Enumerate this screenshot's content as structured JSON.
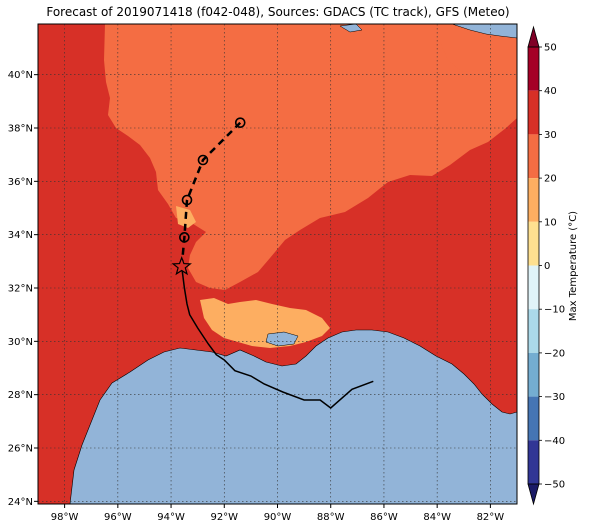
{
  "title": "Forecast of 2019071418 (f042-048), Sources: GDACS (TC track), GFS (Meteo)",
  "map": {
    "lon_range": [
      -99,
      -81
    ],
    "lat_range": [
      23.9,
      41.9
    ],
    "lon_ticks": [
      {
        "value": -98,
        "label": "98°W"
      },
      {
        "value": -96,
        "label": "96°W"
      },
      {
        "value": -94,
        "label": "94°W"
      },
      {
        "value": -92,
        "label": "92°W"
      },
      {
        "value": -90,
        "label": "90°W"
      },
      {
        "value": -88,
        "label": "88°W"
      },
      {
        "value": -86,
        "label": "86°W"
      },
      {
        "value": -84,
        "label": "84°W"
      },
      {
        "value": -82,
        "label": "82°W"
      }
    ],
    "lat_ticks": [
      {
        "value": 24,
        "label": "24°N"
      },
      {
        "value": 26,
        "label": "26°N"
      },
      {
        "value": 28,
        "label": "28°N"
      },
      {
        "value": 30,
        "label": "30°N"
      },
      {
        "value": 32,
        "label": "32°N"
      },
      {
        "value": 34,
        "label": "34°N"
      },
      {
        "value": 36,
        "label": "36°N"
      },
      {
        "value": 38,
        "label": "38°N"
      },
      {
        "value": 40,
        "label": "40°N"
      }
    ],
    "grid": true,
    "colors": {
      "water": "#92b4d8",
      "band_30_40": "#d73027",
      "band_20_30": "#f46d43",
      "band_10_20": "#fdae61"
    }
  },
  "colorbar": {
    "label": "Max Temperature (°C)",
    "ticks": [
      {
        "value": 50,
        "label": "50"
      },
      {
        "value": 40,
        "label": "40"
      },
      {
        "value": 30,
        "label": "30"
      },
      {
        "value": 20,
        "label": "20"
      },
      {
        "value": 10,
        "label": "10"
      },
      {
        "value": 0,
        "label": "0"
      },
      {
        "value": -10,
        "label": "−10"
      },
      {
        "value": -20,
        "label": "−20"
      },
      {
        "value": -30,
        "label": "−30"
      },
      {
        "value": -40,
        "label": "−40"
      },
      {
        "value": -50,
        "label": "−50"
      }
    ],
    "bands": [
      {
        "from": 40,
        "to": 50,
        "color": "#a50026"
      },
      {
        "from": 30,
        "to": 40,
        "color": "#d73027"
      },
      {
        "from": 20,
        "to": 30,
        "color": "#f46d43"
      },
      {
        "from": 10,
        "to": 20,
        "color": "#fdae61"
      },
      {
        "from": 0,
        "to": 10,
        "color": "#fee090"
      },
      {
        "from": -10,
        "to": 0,
        "color": "#e0f3f8"
      },
      {
        "from": -20,
        "to": -10,
        "color": "#abd9e9"
      },
      {
        "from": -30,
        "to": -20,
        "color": "#74add1"
      },
      {
        "from": -40,
        "to": -30,
        "color": "#4575b4"
      },
      {
        "from": -50,
        "to": -40,
        "color": "#313695"
      }
    ],
    "extend_top_color": "#800026",
    "extend_bottom_color": "#1a1a66"
  },
  "track": {
    "past": [
      {
        "lon": -86.4,
        "lat": 28.5
      },
      {
        "lon": -87.2,
        "lat": 28.2
      },
      {
        "lon": -88.0,
        "lat": 27.5
      },
      {
        "lon": -88.4,
        "lat": 27.8
      },
      {
        "lon": -89.0,
        "lat": 27.8
      },
      {
        "lon": -89.8,
        "lat": 28.1
      },
      {
        "lon": -90.5,
        "lat": 28.4
      },
      {
        "lon": -91.0,
        "lat": 28.7
      },
      {
        "lon": -91.6,
        "lat": 28.9
      },
      {
        "lon": -92.0,
        "lat": 29.3
      },
      {
        "lon": -92.3,
        "lat": 29.5
      },
      {
        "lon": -92.6,
        "lat": 29.9
      },
      {
        "lon": -93.0,
        "lat": 30.5
      },
      {
        "lon": -93.3,
        "lat": 31.0
      },
      {
        "lon": -93.4,
        "lat": 31.4
      },
      {
        "lon": -93.5,
        "lat": 32.0
      },
      {
        "lon": -93.6,
        "lat": 32.8
      }
    ],
    "current": {
      "lon": -93.6,
      "lat": 32.8
    },
    "forecast": [
      {
        "lon": -93.6,
        "lat": 32.8
      },
      {
        "lon": -93.5,
        "lat": 33.9
      },
      {
        "lon": -93.4,
        "lat": 35.3
      },
      {
        "lon": -92.8,
        "lat": 36.8
      },
      {
        "lon": -91.4,
        "lat": 38.2
      }
    ]
  }
}
